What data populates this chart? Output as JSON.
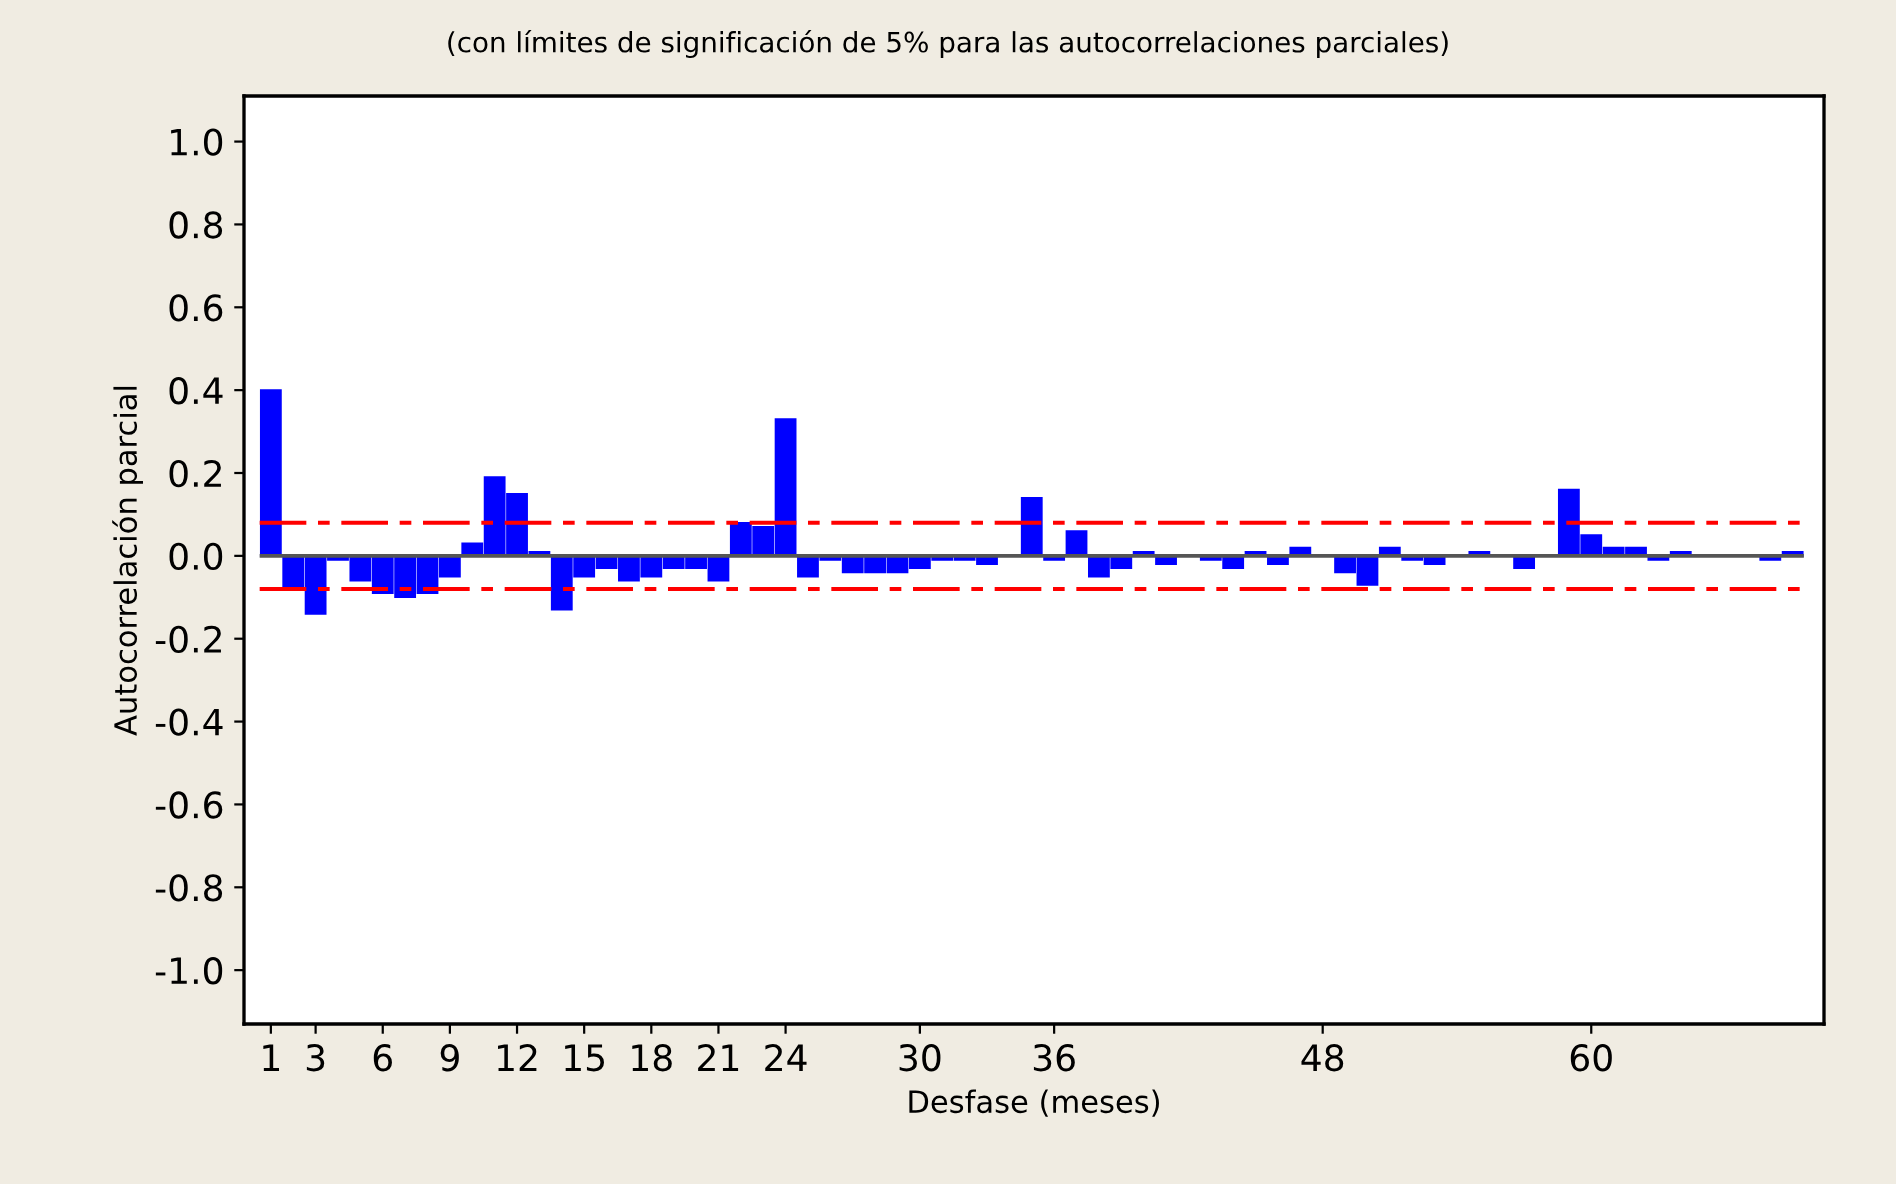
{
  "chart_data": {
    "type": "bar",
    "subtitle": "(con límites de significación de 5% para las autocorrelaciones parciales)",
    "xlabel": "Desfase (meses)",
    "ylabel": "Autocorrelación parcial",
    "x": [
      1,
      2,
      3,
      4,
      5,
      6,
      7,
      8,
      9,
      10,
      11,
      12,
      13,
      14,
      15,
      16,
      17,
      18,
      19,
      20,
      21,
      22,
      23,
      24,
      25,
      26,
      27,
      28,
      29,
      30,
      31,
      32,
      33,
      34,
      35,
      36,
      37,
      38,
      39,
      40,
      41,
      42,
      43,
      44,
      45,
      46,
      47,
      48,
      49,
      50,
      51,
      52,
      53,
      54,
      55,
      56,
      57,
      58,
      59,
      60,
      61,
      62,
      63,
      64,
      65,
      66,
      67,
      68,
      69
    ],
    "values": [
      0.4,
      -0.08,
      -0.14,
      -0.01,
      -0.06,
      -0.09,
      -0.1,
      -0.09,
      -0.05,
      0.03,
      0.19,
      0.15,
      0.01,
      -0.13,
      -0.05,
      -0.03,
      -0.06,
      -0.05,
      -0.03,
      -0.03,
      -0.06,
      0.08,
      0.07,
      0.33,
      -0.05,
      -0.01,
      -0.04,
      -0.04,
      -0.04,
      -0.03,
      -0.01,
      -0.01,
      -0.02,
      0.0,
      0.14,
      -0.01,
      0.06,
      -0.05,
      -0.03,
      0.01,
      -0.02,
      0.0,
      -0.01,
      -0.03,
      0.01,
      -0.02,
      0.02,
      0.0,
      -0.04,
      -0.07,
      0.02,
      -0.01,
      -0.02,
      0.0,
      0.01,
      0.0,
      -0.03,
      0.0,
      0.16,
      0.05,
      0.02,
      0.02,
      -0.01,
      0.01,
      0.0,
      0.0,
      0.0,
      -0.01,
      0.01
    ],
    "color": "#0000ff",
    "xlim": [
      -0.2,
      70.4
    ],
    "xticks": [
      1,
      3,
      6,
      9,
      12,
      15,
      18,
      21,
      24,
      30,
      36,
      48,
      60
    ],
    "ylim": [
      -1.13,
      1.11
    ],
    "yticks": [
      {
        "value": -1,
        "label": "-1.0"
      },
      -0.8,
      -0.6,
      -0.4,
      -0.2,
      {
        "value": 0,
        "label": "0.0"
      },
      0.2,
      0.4,
      0.6,
      0.8,
      {
        "value": 1,
        "label": "1.0"
      }
    ],
    "ref_lines": [
      {
        "axis": "y",
        "value": 0,
        "color": "#555555",
        "line_style": "solid"
      },
      {
        "axis": "y",
        "value": 0.08,
        "color": "#ff0000",
        "line_style": "dashdot"
      },
      {
        "axis": "y",
        "value": -0.08,
        "color": "#ff0000",
        "line_style": "dashdot"
      }
    ],
    "grid": false,
    "legend": false
  }
}
